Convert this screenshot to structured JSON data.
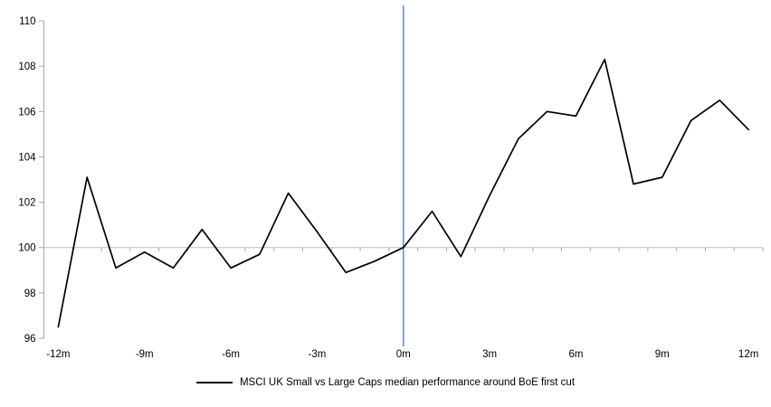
{
  "chart_data": {
    "type": "line",
    "title": "",
    "xlabel": "",
    "ylabel": "",
    "x": [
      -12,
      -11,
      -10,
      -9,
      -8,
      -7,
      -6,
      -5,
      -4,
      -3,
      -2,
      -1,
      0,
      1,
      2,
      3,
      4,
      5,
      6,
      7,
      8,
      9,
      10,
      11,
      12
    ],
    "series": [
      {
        "name": "MSCI UK Small vs Large Caps median performance around BoE first cut",
        "values": [
          96.5,
          103.1,
          99.1,
          99.8,
          99.1,
          100.8,
          99.1,
          99.7,
          102.4,
          100.7,
          98.9,
          99.4,
          100.0,
          101.6,
          99.6,
          102.3,
          104.8,
          106.0,
          105.8,
          108.3,
          102.8,
          103.1,
          105.6,
          106.5,
          105.2
        ]
      }
    ],
    "x_tick_months": [
      -12,
      -9,
      -6,
      -3,
      0,
      3,
      6,
      9,
      12
    ],
    "x_tick_labels": [
      "-12m",
      "-9m",
      "-6m",
      "-3m",
      "0m",
      "3m",
      "6m",
      "9m",
      "12m"
    ],
    "y_ticks": [
      96,
      98,
      100,
      102,
      104,
      106,
      108,
      110
    ],
    "ylim": [
      96,
      110
    ],
    "baseline_value": 100,
    "event_line_x": 0,
    "legend": "MSCI UK Small vs Large Caps median performance around BoE first cut",
    "legend_position": "bottom",
    "grid": "off",
    "colors": {
      "series": "#000000",
      "event_line": "#4F81BD",
      "baseline": "#BFBFBF",
      "axis": "#A6A6A6",
      "tick_label": "#000000"
    }
  }
}
